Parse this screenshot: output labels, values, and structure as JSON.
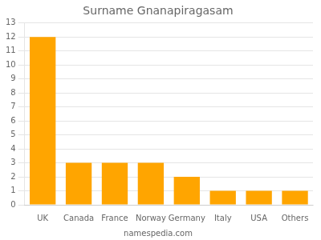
{
  "chart_data": {
    "type": "bar",
    "title": "Surname Gnanapiragasam",
    "categories": [
      "UK",
      "Canada",
      "France",
      "Norway",
      "Germany",
      "Italy",
      "USA",
      "Others"
    ],
    "values": [
      12,
      3,
      3,
      3,
      2,
      1,
      1,
      1
    ],
    "color": "#FFA500",
    "ylim": [
      0,
      13
    ],
    "yticks": [
      0,
      1,
      2,
      3,
      4,
      5,
      6,
      7,
      8,
      9,
      10,
      11,
      12,
      13
    ],
    "grid": true,
    "annotations": [
      "namespedia.com"
    ]
  }
}
